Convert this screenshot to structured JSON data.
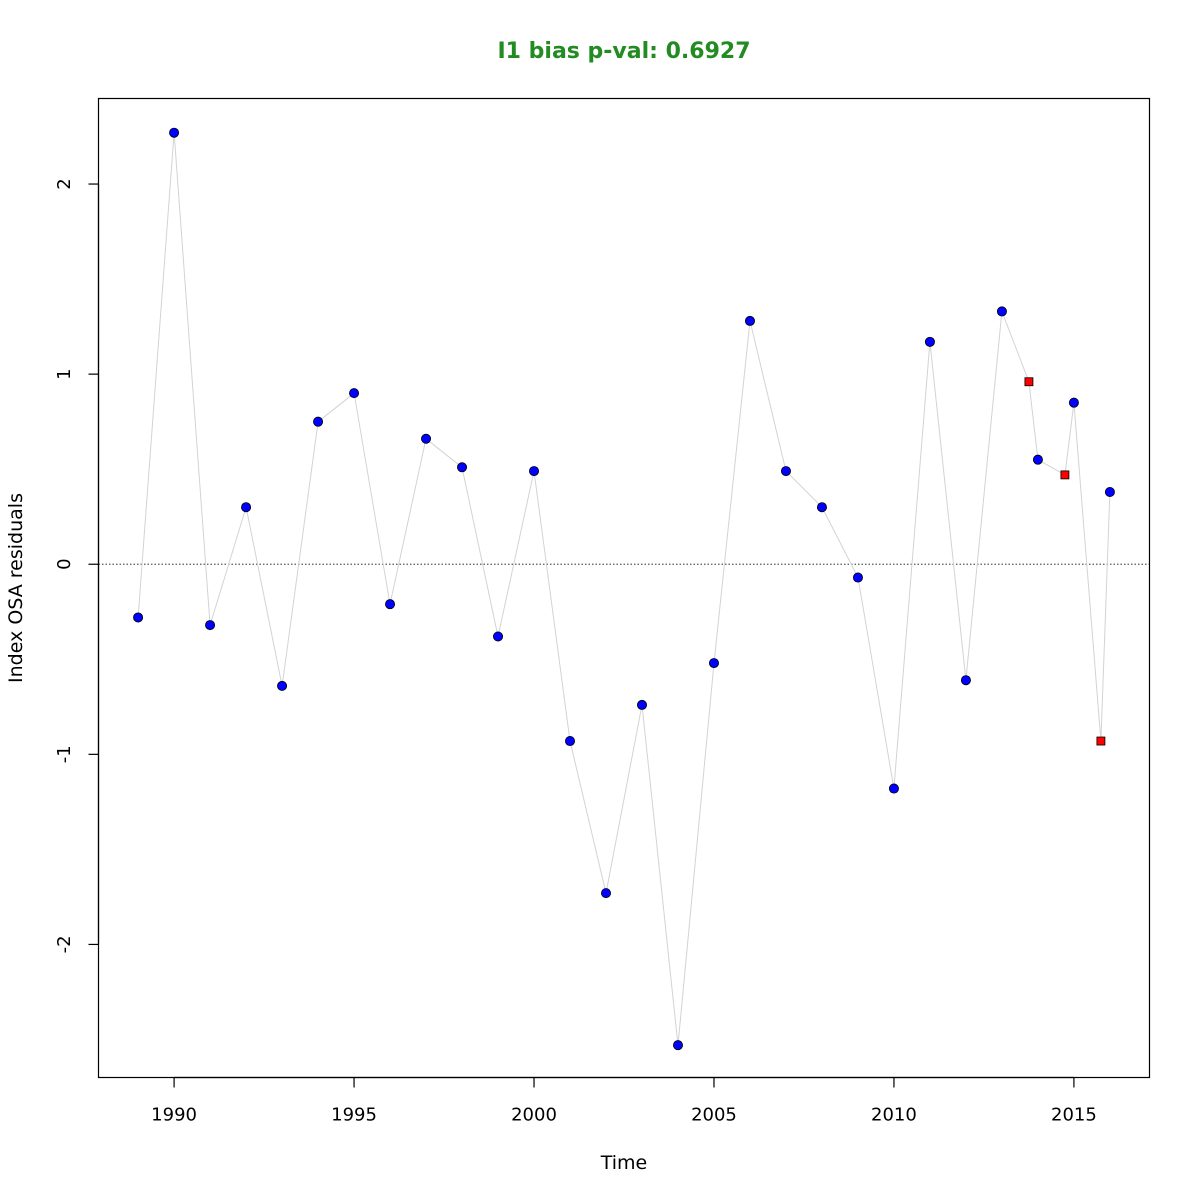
{
  "chart_data": {
    "type": "scatter",
    "title": "I1 bias p-val: 0.6927",
    "title_color": "#228B22",
    "xlabel": "Time",
    "ylabel": "Index OSA residuals",
    "xlim": [
      1987.9,
      2017.1
    ],
    "ylim": [
      -2.7,
      2.45
    ],
    "x_ticks": [
      1990,
      1995,
      2000,
      2005,
      2010,
      2015
    ],
    "y_ticks": [
      -2,
      -1,
      0,
      1,
      2
    ],
    "grid": false,
    "reference_line": {
      "y": 0,
      "style": "dotted",
      "color": "#555555"
    },
    "connector_color": "#d3d3d3",
    "series": [
      {
        "marker": "circle",
        "fill": "#0000ff",
        "x": [
          1989,
          1990,
          1991,
          1992,
          1993,
          1994,
          1995,
          1996,
          1997,
          1998,
          1999,
          2000,
          2001,
          2002,
          2003,
          2004,
          2005,
          2006,
          2007,
          2008,
          2009,
          2010,
          2011,
          2012,
          2013,
          2014,
          2015,
          2016
        ],
        "y": [
          -0.28,
          2.27,
          -0.32,
          0.3,
          -0.64,
          0.75,
          0.9,
          -0.21,
          0.66,
          0.51,
          -0.38,
          0.49,
          -0.93,
          -1.73,
          -0.74,
          -2.53,
          -0.52,
          1.28,
          0.49,
          0.3,
          -0.07,
          -1.18,
          1.17,
          -0.61,
          1.33,
          0.55,
          0.85,
          0.38
        ]
      },
      {
        "marker": "square",
        "fill": "#ff0000",
        "x": [
          2013.75,
          2014.75,
          2015.75
        ],
        "y": [
          0.96,
          0.47,
          -0.93
        ]
      }
    ]
  }
}
